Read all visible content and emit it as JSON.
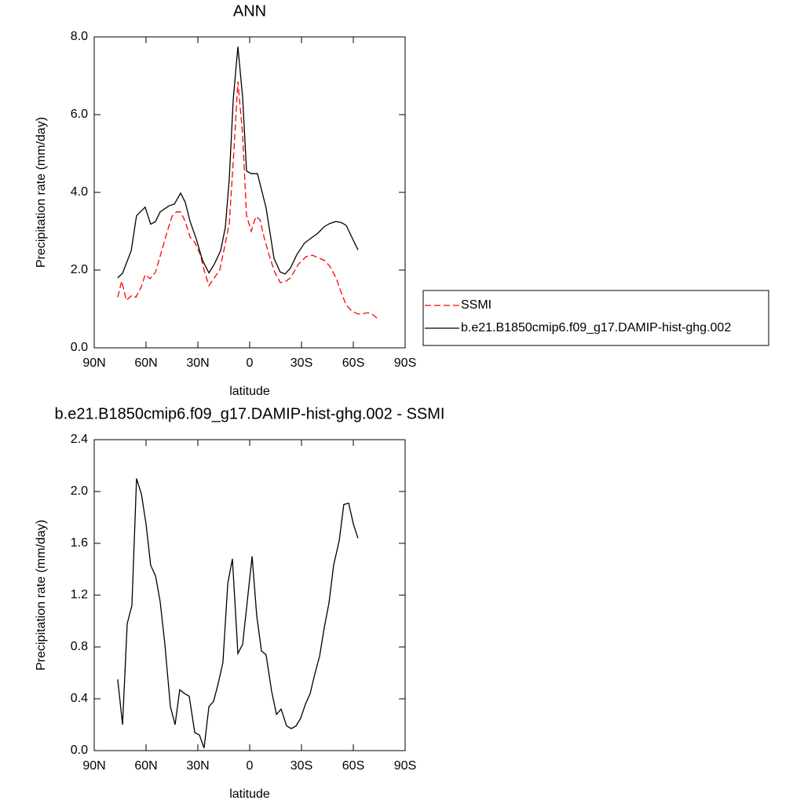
{
  "chart_data": [
    {
      "type": "line",
      "title": "ANN",
      "xlabel": "latitude",
      "ylabel": "Precipitation rate (mm/day)",
      "xlim": [
        90,
        -90
      ],
      "xticks": [
        {
          "value": 90,
          "label": "90N"
        },
        {
          "value": 60,
          "label": "60N"
        },
        {
          "value": 30,
          "label": "30N"
        },
        0,
        {
          "value": -30,
          "label": "30S"
        },
        {
          "value": -60,
          "label": "60S"
        },
        {
          "value": -90,
          "label": "90S"
        }
      ],
      "ylim": [
        0,
        8
      ],
      "yticks": [
        {
          "value": 0,
          "label": "0.0"
        },
        {
          "value": 2,
          "label": "2.0"
        },
        {
          "value": 4,
          "label": "4.0"
        },
        {
          "value": 6,
          "label": "6.0"
        },
        {
          "value": 8,
          "label": "8.0"
        }
      ],
      "legend": "right",
      "series": [
        {
          "name": "SSMI",
          "color": "#ff0000",
          "dashed": true,
          "x": [
            76.4,
            74.1,
            71.4,
            68.2,
            65.9,
            62.7,
            60.5,
            57.7,
            54.5,
            50.9,
            47.7,
            45.0,
            42.3,
            40.0,
            37.3,
            34.5,
            31.8,
            28.6,
            26.4,
            23.6,
            20.5,
            17.3,
            14.5,
            11.8,
            9.5,
            6.8,
            4.1,
            1.8,
            -0.9,
            -3.6,
            -5.9,
            -8.6,
            -11.8,
            -14.5,
            -17.7,
            -20.5,
            -23.6,
            -28.2,
            -32.7,
            -36.4,
            -39.5,
            -43.2,
            -46.4,
            -50.0,
            -53.2,
            -55.9,
            -59.1,
            -62.7,
            -65.5,
            -68.6,
            -71.4,
            -74.1
          ],
          "values": [
            1.3,
            1.72,
            1.22,
            1.35,
            1.3,
            1.58,
            1.88,
            1.78,
            1.95,
            2.5,
            3.0,
            3.38,
            3.5,
            3.5,
            3.25,
            2.85,
            2.72,
            2.4,
            2.0,
            1.6,
            1.8,
            2.0,
            2.6,
            3.2,
            4.8,
            6.85,
            5.5,
            3.4,
            3.0,
            3.38,
            3.3,
            2.8,
            2.3,
            1.95,
            1.68,
            1.7,
            1.8,
            2.15,
            2.35,
            2.38,
            2.32,
            2.25,
            2.1,
            1.8,
            1.4,
            1.1,
            0.95,
            0.87,
            0.88,
            0.9,
            0.85,
            0.75
          ]
        },
        {
          "name": "b.e21.B1850cmip6.f09_g17.DAMIP-hist-ghg.002",
          "color": "#000000",
          "dashed": false,
          "x": [
            76.4,
            73.6,
            68.6,
            65.5,
            60.5,
            57.3,
            54.5,
            51.8,
            46.8,
            43.6,
            40.0,
            37.3,
            34.5,
            30.9,
            27.3,
            23.6,
            20.5,
            16.8,
            14.1,
            11.8,
            9.5,
            6.8,
            4.1,
            1.8,
            -0.9,
            -4.5,
            -9.5,
            -14.1,
            -17.7,
            -20.5,
            -23.6,
            -27.3,
            -31.8,
            -36.4,
            -39.5,
            -43.2,
            -46.4,
            -50.0,
            -53.2,
            -55.9,
            -59.1,
            -62.7
          ],
          "values": [
            1.8,
            1.92,
            2.5,
            3.4,
            3.62,
            3.18,
            3.25,
            3.5,
            3.65,
            3.7,
            3.98,
            3.75,
            3.25,
            2.8,
            2.25,
            1.93,
            2.15,
            2.5,
            3.1,
            4.35,
            6.4,
            7.75,
            6.45,
            4.55,
            4.48,
            4.48,
            3.6,
            2.3,
            1.95,
            1.9,
            2.05,
            2.4,
            2.7,
            2.85,
            2.95,
            3.12,
            3.2,
            3.25,
            3.22,
            3.15,
            2.85,
            2.52
          ]
        }
      ]
    },
    {
      "type": "line",
      "title": "b.e21.B1850cmip6.f09_g17.DAMIP-hist-ghg.002 - SSMI",
      "xlabel": "latitude",
      "ylabel": "Precipitation rate (mm/day)",
      "xlim": [
        90,
        -90
      ],
      "xticks": [
        {
          "value": 90,
          "label": "90N"
        },
        {
          "value": 60,
          "label": "60N"
        },
        {
          "value": 30,
          "label": "30N"
        },
        0,
        {
          "value": -30,
          "label": "30S"
        },
        {
          "value": -60,
          "label": "60S"
        },
        {
          "value": -90,
          "label": "90S"
        }
      ],
      "ylim": [
        0,
        2.4
      ],
      "yticks": [
        {
          "value": 0,
          "label": "0.0"
        },
        {
          "value": 0.4,
          "label": "0.4"
        },
        {
          "value": 0.8,
          "label": "0.8"
        },
        {
          "value": 1.2,
          "label": "1.2"
        },
        {
          "value": 1.6,
          "label": "1.6"
        },
        {
          "value": 2.0,
          "label": "2.0"
        },
        {
          "value": 2.4,
          "label": "2.4"
        }
      ],
      "series": [
        {
          "color": "#000000",
          "dashed": false,
          "x": [
            76.4,
            73.6,
            70.9,
            68.2,
            65.5,
            62.7,
            60.0,
            57.3,
            54.5,
            51.8,
            49.1,
            45.9,
            43.2,
            40.5,
            37.7,
            35.0,
            31.8,
            29.1,
            26.4,
            23.6,
            20.9,
            18.2,
            15.5,
            12.7,
            10.0,
            6.8,
            4.1,
            1.4,
            -1.4,
            -4.1,
            -6.8,
            -9.5,
            -12.7,
            -15.5,
            -18.2,
            -21.4,
            -24.1,
            -26.8,
            -29.5,
            -32.3,
            -35.0,
            -37.7,
            -40.5,
            -43.2,
            -45.9,
            -48.6,
            -51.8,
            -54.5,
            -57.3,
            -60.0,
            -62.7
          ],
          "values": [
            0.55,
            0.2,
            0.98,
            1.12,
            2.1,
            1.98,
            1.75,
            1.43,
            1.35,
            1.15,
            0.82,
            0.34,
            0.2,
            0.47,
            0.44,
            0.42,
            0.14,
            0.12,
            0.02,
            0.34,
            0.38,
            0.52,
            0.68,
            1.29,
            1.48,
            0.75,
            0.82,
            1.15,
            1.5,
            1.04,
            0.77,
            0.74,
            0.46,
            0.28,
            0.32,
            0.19,
            0.17,
            0.19,
            0.25,
            0.36,
            0.44,
            0.59,
            0.73,
            0.95,
            1.14,
            1.43,
            1.62,
            1.9,
            1.91,
            1.75,
            1.64
          ]
        }
      ]
    }
  ]
}
